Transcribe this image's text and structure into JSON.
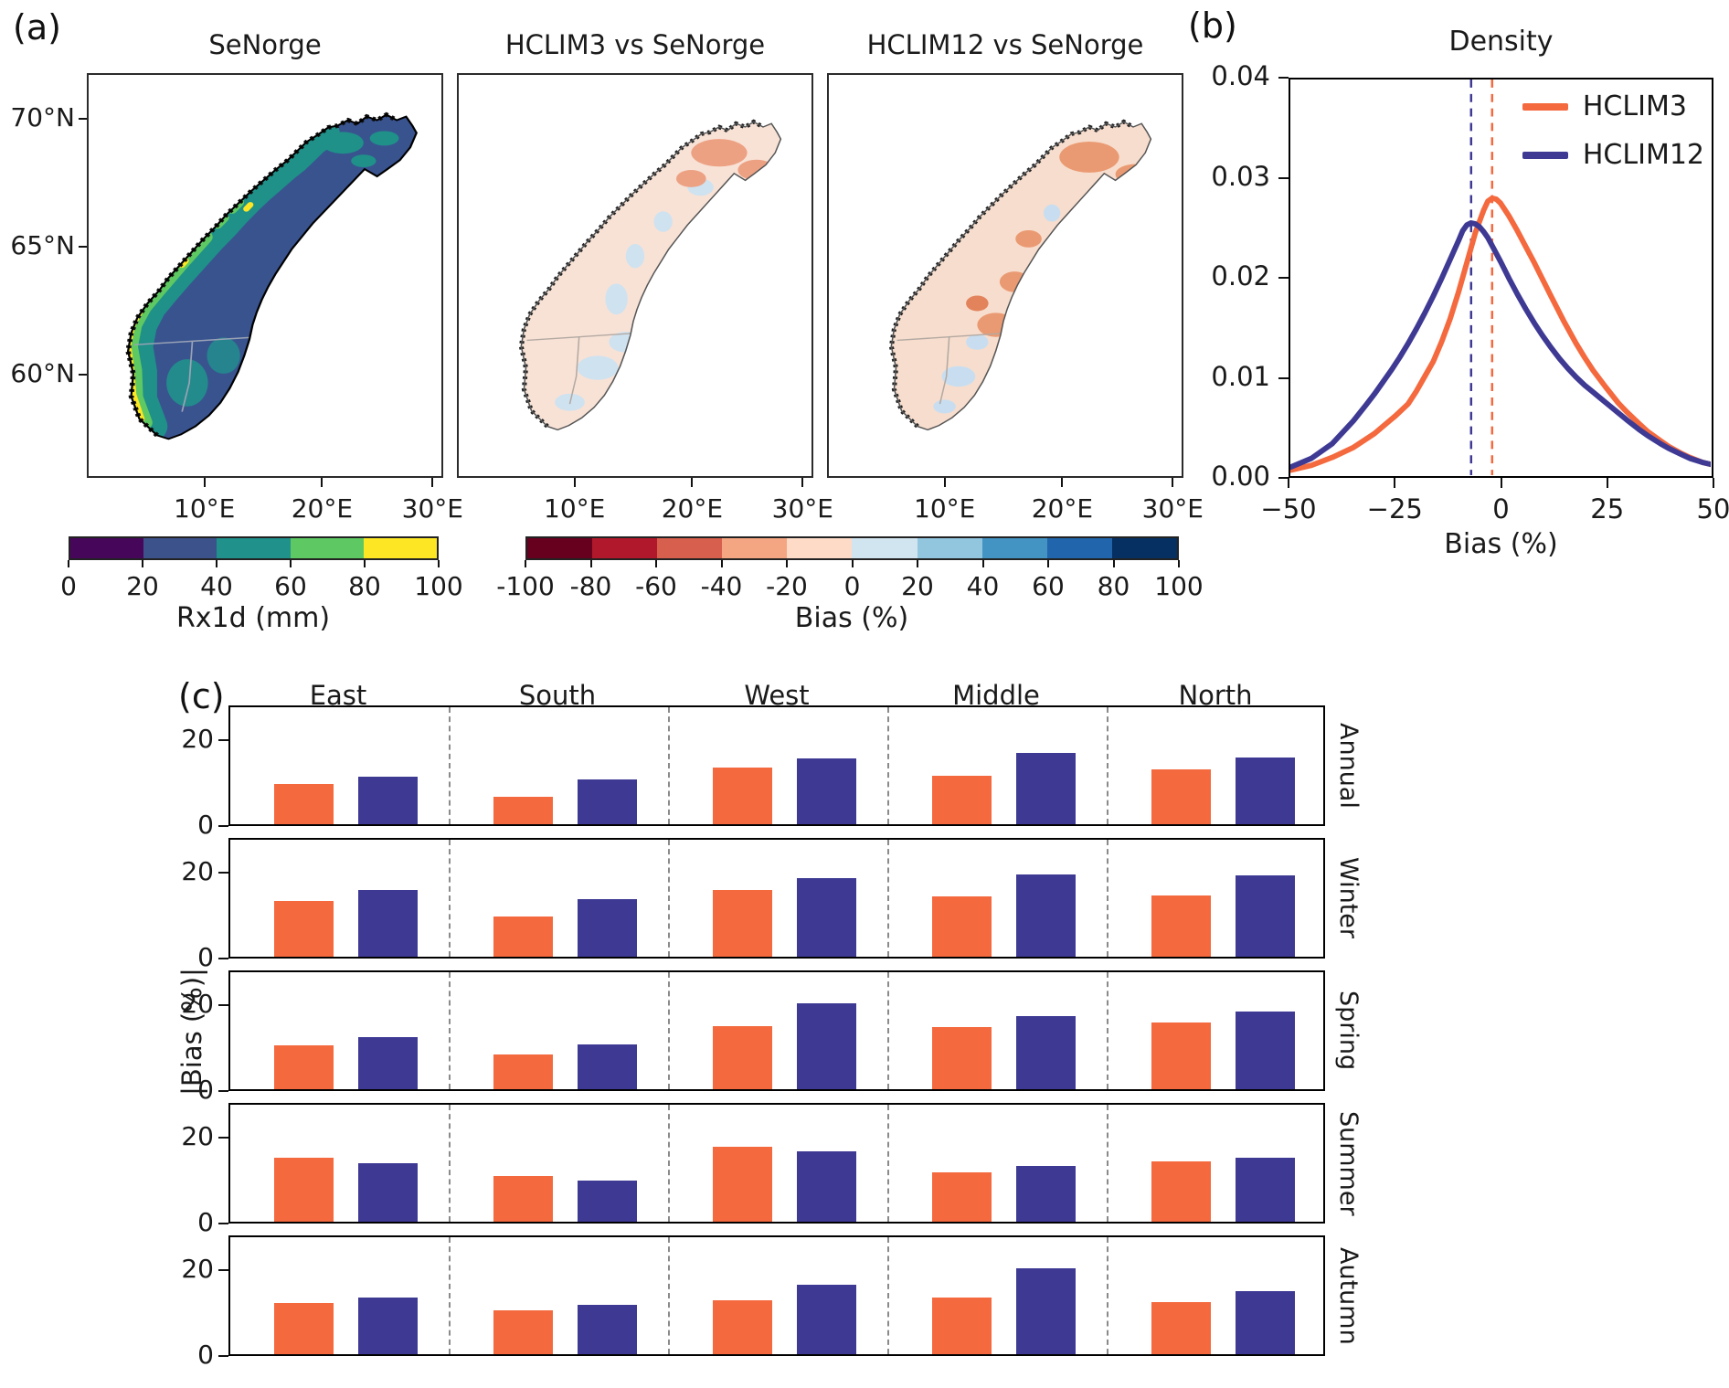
{
  "panels": {
    "a_label": "(a)",
    "b_label": "(b)",
    "c_label": "(c)"
  },
  "panel_a": {
    "maps": [
      {
        "title": "SeNorge"
      },
      {
        "title": "HCLIM3 vs SeNorge"
      },
      {
        "title": "HCLIM12 vs SeNorge"
      }
    ],
    "lat_ticks": [
      "70°N",
      "65°N",
      "60°N"
    ],
    "lon_ticks": [
      "10°E",
      "20°E",
      "30°E"
    ],
    "colorbar_rx1d": {
      "label": "Rx1d (mm)",
      "ticks": [
        "0",
        "20",
        "40",
        "60",
        "80",
        "100"
      ],
      "colors": [
        "#46075a",
        "#3b528b",
        "#21918c",
        "#5ec962",
        "#fde725"
      ]
    },
    "colorbar_bias": {
      "label": "Bias (%)",
      "ticks": [
        "-100",
        "-80",
        "-60",
        "-40",
        "-20",
        "0",
        "20",
        "40",
        "60",
        "80",
        "100"
      ],
      "colors": [
        "#67001f",
        "#b2182b",
        "#d6604d",
        "#f4a582",
        "#fddbc7",
        "#d1e5f0",
        "#92c5de",
        "#4393c3",
        "#2166ac",
        "#053061"
      ]
    }
  },
  "chart_data": [
    {
      "type": "line",
      "title": "Density",
      "xlabel": "Bias (%)",
      "xlim": [
        -50,
        50
      ],
      "ylim": [
        0,
        0.04
      ],
      "xticks": [
        "−50",
        "−25",
        "0",
        "25",
        "50"
      ],
      "xtick_values": [
        -50,
        -25,
        0,
        25,
        50
      ],
      "yticks": [
        "0.00",
        "0.01",
        "0.02",
        "0.03",
        "0.04"
      ],
      "ytick_values": [
        0,
        0.01,
        0.02,
        0.03,
        0.04
      ],
      "grid": false,
      "legend_position": "upper right",
      "series": [
        {
          "name": "HCLIM3",
          "color": "#f4693e",
          "mean_line_x": -2,
          "points": [
            [
              -50,
              0.0005
            ],
            [
              -45,
              0.001
            ],
            [
              -40,
              0.0018
            ],
            [
              -35,
              0.0028
            ],
            [
              -30,
              0.0042
            ],
            [
              -25,
              0.006
            ],
            [
              -22,
              0.0072
            ],
            [
              -20,
              0.0085
            ],
            [
              -18,
              0.01
            ],
            [
              -16,
              0.0115
            ],
            [
              -14,
              0.0135
            ],
            [
              -12,
              0.0158
            ],
            [
              -10,
              0.0185
            ],
            [
              -8,
              0.0215
            ],
            [
              -6,
              0.0245
            ],
            [
              -4,
              0.0268
            ],
            [
              -3,
              0.0277
            ],
            [
              -2,
              0.028
            ],
            [
              -1,
              0.0279
            ],
            [
              0,
              0.0275
            ],
            [
              2,
              0.0262
            ],
            [
              4,
              0.0247
            ],
            [
              6,
              0.0231
            ],
            [
              8,
              0.0215
            ],
            [
              10,
              0.0198
            ],
            [
              12,
              0.0181
            ],
            [
              15,
              0.0156
            ],
            [
              18,
              0.0133
            ],
            [
              20,
              0.0119
            ],
            [
              22,
              0.0106
            ],
            [
              25,
              0.0089
            ],
            [
              28,
              0.0073
            ],
            [
              30,
              0.0064
            ],
            [
              33,
              0.0052
            ],
            [
              35,
              0.0044
            ],
            [
              38,
              0.0035
            ],
            [
              40,
              0.0029
            ],
            [
              43,
              0.0022
            ],
            [
              45,
              0.0018
            ],
            [
              48,
              0.0013
            ],
            [
              50,
              0.0011
            ]
          ]
        },
        {
          "name": "HCLIM12",
          "color": "#3e3a94",
          "mean_line_x": -7,
          "points": [
            [
              -50,
              0.0008
            ],
            [
              -45,
              0.0017
            ],
            [
              -40,
              0.0032
            ],
            [
              -35,
              0.0055
            ],
            [
              -32,
              0.0071
            ],
            [
              -30,
              0.0082
            ],
            [
              -28,
              0.0094
            ],
            [
              -26,
              0.0106
            ],
            [
              -24,
              0.0119
            ],
            [
              -22,
              0.0133
            ],
            [
              -20,
              0.0148
            ],
            [
              -18,
              0.0164
            ],
            [
              -16,
              0.0181
            ],
            [
              -14,
              0.0199
            ],
            [
              -12,
              0.0218
            ],
            [
              -10,
              0.0237
            ],
            [
              -9,
              0.0247
            ],
            [
              -8,
              0.0253
            ],
            [
              -7,
              0.0255
            ],
            [
              -6,
              0.0254
            ],
            [
              -5,
              0.0251
            ],
            [
              -4,
              0.0246
            ],
            [
              -3,
              0.024
            ],
            [
              -2,
              0.0232
            ],
            [
              0,
              0.0216
            ],
            [
              2,
              0.0199
            ],
            [
              4,
              0.0183
            ],
            [
              6,
              0.0168
            ],
            [
              8,
              0.0154
            ],
            [
              10,
              0.0141
            ],
            [
              12,
              0.0129
            ],
            [
              14,
              0.0118
            ],
            [
              16,
              0.0108
            ],
            [
              18,
              0.0099
            ],
            [
              20,
              0.0091
            ],
            [
              22,
              0.0084
            ],
            [
              24,
              0.0077
            ],
            [
              26,
              0.007
            ],
            [
              28,
              0.0063
            ],
            [
              30,
              0.0056
            ],
            [
              33,
              0.0046
            ],
            [
              35,
              0.004
            ],
            [
              38,
              0.0032
            ],
            [
              40,
              0.0027
            ],
            [
              43,
              0.0021
            ],
            [
              45,
              0.0017
            ],
            [
              48,
              0.0013
            ],
            [
              50,
              0.0011
            ]
          ]
        }
      ]
    },
    {
      "type": "bar",
      "ylabel": "|Bias (%)|",
      "columns": [
        "East",
        "South",
        "West",
        "Middle",
        "North"
      ],
      "rows": [
        "Annual",
        "Winter",
        "Spring",
        "Summer",
        "Autumn"
      ],
      "yticks": [
        "20",
        "0"
      ],
      "ytick_values": [
        20,
        0
      ],
      "ylim": [
        0,
        28
      ],
      "series": [
        {
          "name": "HCLIM3",
          "color": "#f4693e"
        },
        {
          "name": "HCLIM12",
          "color": "#3e3a94"
        }
      ],
      "values": {
        "Annual": {
          "HCLIM3": [
            9.3,
            6.3,
            13.2,
            11.3,
            12.8
          ],
          "HCLIM12": [
            11.0,
            10.5,
            15.3,
            16.6,
            15.6
          ]
        },
        "Winter": {
          "HCLIM3": [
            13.0,
            9.4,
            15.4,
            14.0,
            14.3
          ],
          "HCLIM12": [
            15.6,
            13.4,
            18.3,
            19.2,
            18.9
          ]
        },
        "Spring": {
          "HCLIM3": [
            10.1,
            8.0,
            14.6,
            14.4,
            15.5
          ],
          "HCLIM12": [
            12.1,
            10.5,
            20.0,
            16.9,
            18.0
          ]
        },
        "Summer": {
          "HCLIM3": [
            14.9,
            10.6,
            17.4,
            11.5,
            14.0
          ],
          "HCLIM12": [
            13.5,
            9.6,
            16.4,
            13.0,
            14.9
          ]
        },
        "Autumn": {
          "HCLIM3": [
            11.9,
            10.1,
            12.6,
            13.1,
            12.0
          ],
          "HCLIM12": [
            13.1,
            11.5,
            16.1,
            20.0,
            14.6
          ]
        }
      }
    }
  ]
}
